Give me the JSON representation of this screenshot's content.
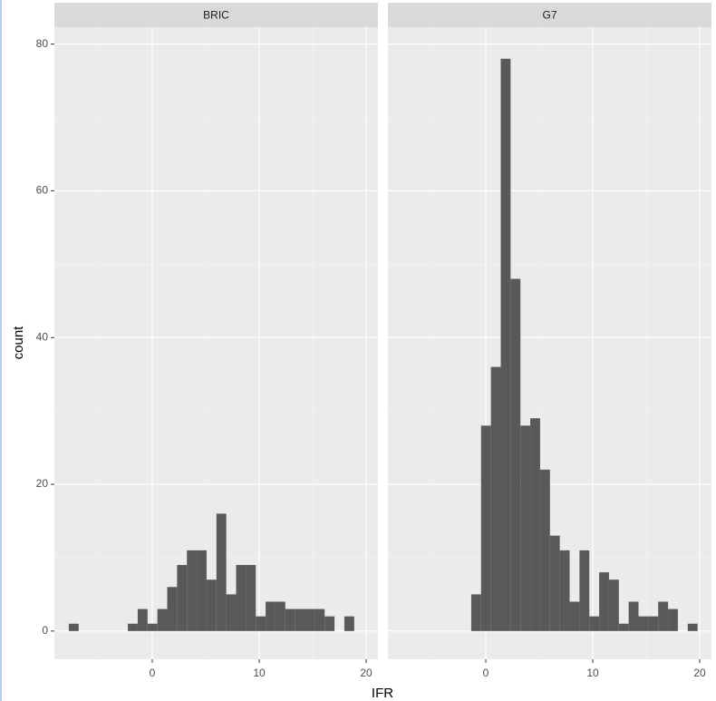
{
  "chart_data": {
    "type": "histogram",
    "xlabel": "IFR",
    "ylabel": "count",
    "color": "#595959",
    "grid": true,
    "bins": [
      -7.8,
      -6.88,
      -5.96,
      -5.04,
      -4.12,
      -3.2,
      -2.28,
      -1.36,
      -0.44,
      0.48,
      1.4,
      2.32,
      3.24,
      4.16,
      5.08,
      6.0,
      6.92,
      7.84,
      8.76,
      9.68,
      10.6,
      11.52,
      12.44,
      13.36,
      14.28,
      15.2,
      16.12,
      17.04,
      17.96,
      18.88,
      19.8
    ],
    "panels": [
      {
        "name": "BRIC",
        "values": [
          1,
          0,
          0,
          0,
          0,
          0,
          1,
          3,
          1,
          3,
          6,
          9,
          11,
          11,
          7,
          16,
          5,
          9,
          9,
          2,
          4,
          4,
          3,
          3,
          3,
          3,
          2,
          0,
          2,
          0
        ]
      },
      {
        "name": "G7",
        "values": [
          0,
          0,
          0,
          0,
          0,
          0,
          0,
          5,
          28,
          36,
          78,
          48,
          28,
          29,
          22,
          13,
          11,
          4,
          11,
          2,
          8,
          7,
          1,
          4,
          2,
          2,
          4,
          3,
          0,
          1
        ]
      }
    ],
    "xlim": [
      -9.15,
      21.1
    ],
    "ylim": [
      -3.85,
      82.3
    ],
    "xticks": [
      0,
      10,
      20
    ],
    "yticks": [
      0,
      20,
      40,
      60,
      80
    ],
    "xminor": [
      -5,
      5,
      15
    ],
    "yminor": [
      10,
      30,
      50,
      70
    ]
  }
}
